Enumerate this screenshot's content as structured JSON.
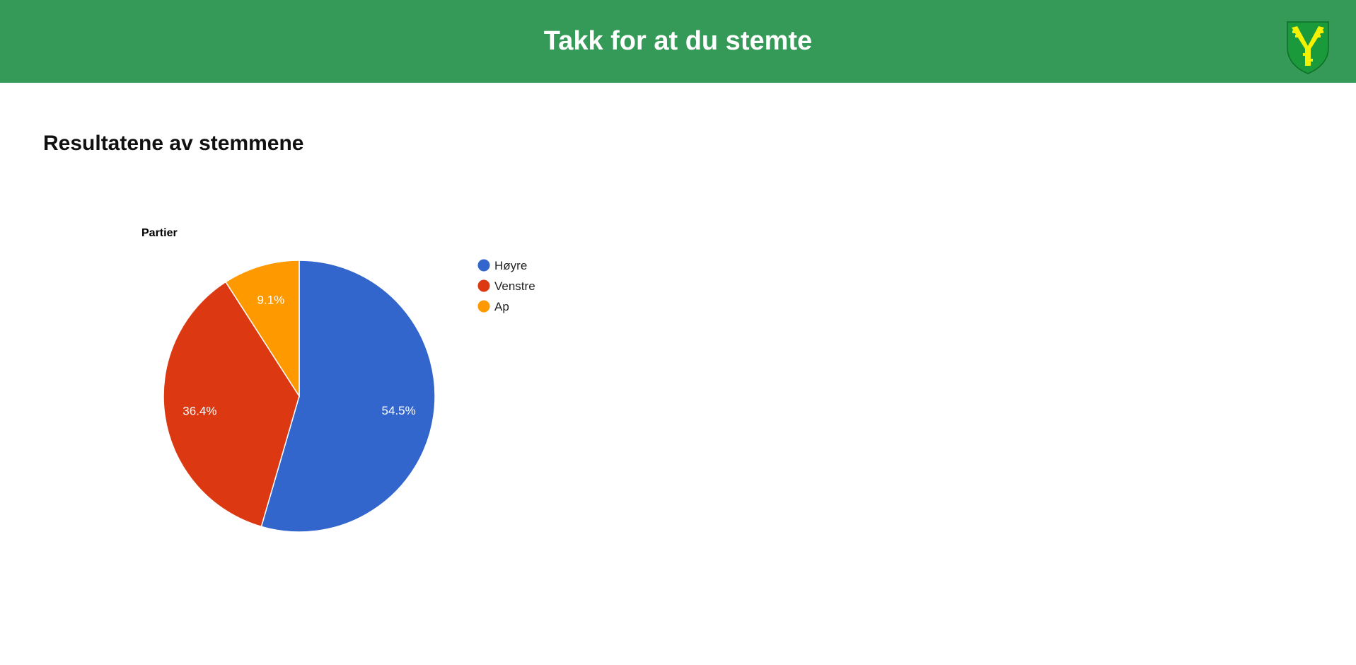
{
  "header": {
    "title": "Takk for at du stemte",
    "background_color": "#359a57",
    "crest_icon": "municipal-coat-of-arms-icon"
  },
  "main": {
    "heading": "Resultatene av stemmene"
  },
  "chart_data": {
    "type": "pie",
    "title": "Partier",
    "legend_position": "right",
    "slices": [
      {
        "label": "Høyre",
        "value": 54.5,
        "display": "54.5%",
        "color": "#3366cc"
      },
      {
        "label": "Venstre",
        "value": 36.4,
        "display": "36.4%",
        "color": "#dc3912"
      },
      {
        "label": "Ap",
        "value": 9.1,
        "display": "9.1%",
        "color": "#ff9900"
      }
    ]
  }
}
